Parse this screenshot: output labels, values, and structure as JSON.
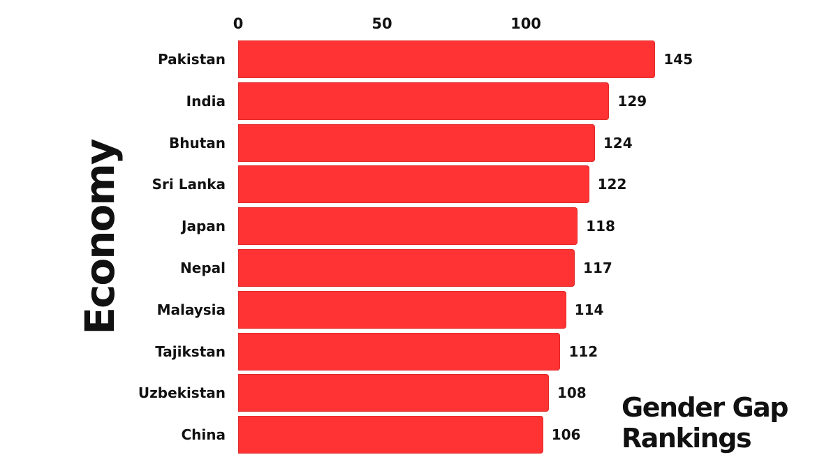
{
  "chart_data": {
    "type": "bar",
    "orientation": "horizontal",
    "title": "Gender Gap Rankings",
    "xlabel": "",
    "ylabel": "Economy",
    "categories": [
      "Pakistan",
      "India",
      "Bhutan",
      "Sri Lanka",
      "Japan",
      "Nepal",
      "Malaysia",
      "Tajikstan",
      "Uzbekistan",
      "China"
    ],
    "values": [
      145,
      129,
      124,
      122,
      118,
      117,
      114,
      112,
      108,
      106
    ],
    "xticks": [
      "0",
      "50",
      "100"
    ],
    "xlim": [
      0,
      150
    ],
    "xaxis_position": "top",
    "grid": false,
    "legend": null,
    "bar_color": "#FF3333",
    "data_labels": true
  },
  "labels": {
    "ylabel": "Economy",
    "title_line1": "Gender Gap",
    "title_line2": "Rankings",
    "ticks": [
      "0",
      "50",
      "100"
    ],
    "rows": [
      {
        "name": "Pakistan",
        "value": "145"
      },
      {
        "name": "India",
        "value": "129"
      },
      {
        "name": "Bhutan",
        "value": "124"
      },
      {
        "name": "Sri Lanka",
        "value": "122"
      },
      {
        "name": "Japan",
        "value": "118"
      },
      {
        "name": "Nepal",
        "value": "117"
      },
      {
        "name": "Malaysia",
        "value": "114"
      },
      {
        "name": "Tajikstan",
        "value": "112"
      },
      {
        "name": "Uzbekistan",
        "value": "108"
      },
      {
        "name": "China",
        "value": "106"
      }
    ]
  }
}
